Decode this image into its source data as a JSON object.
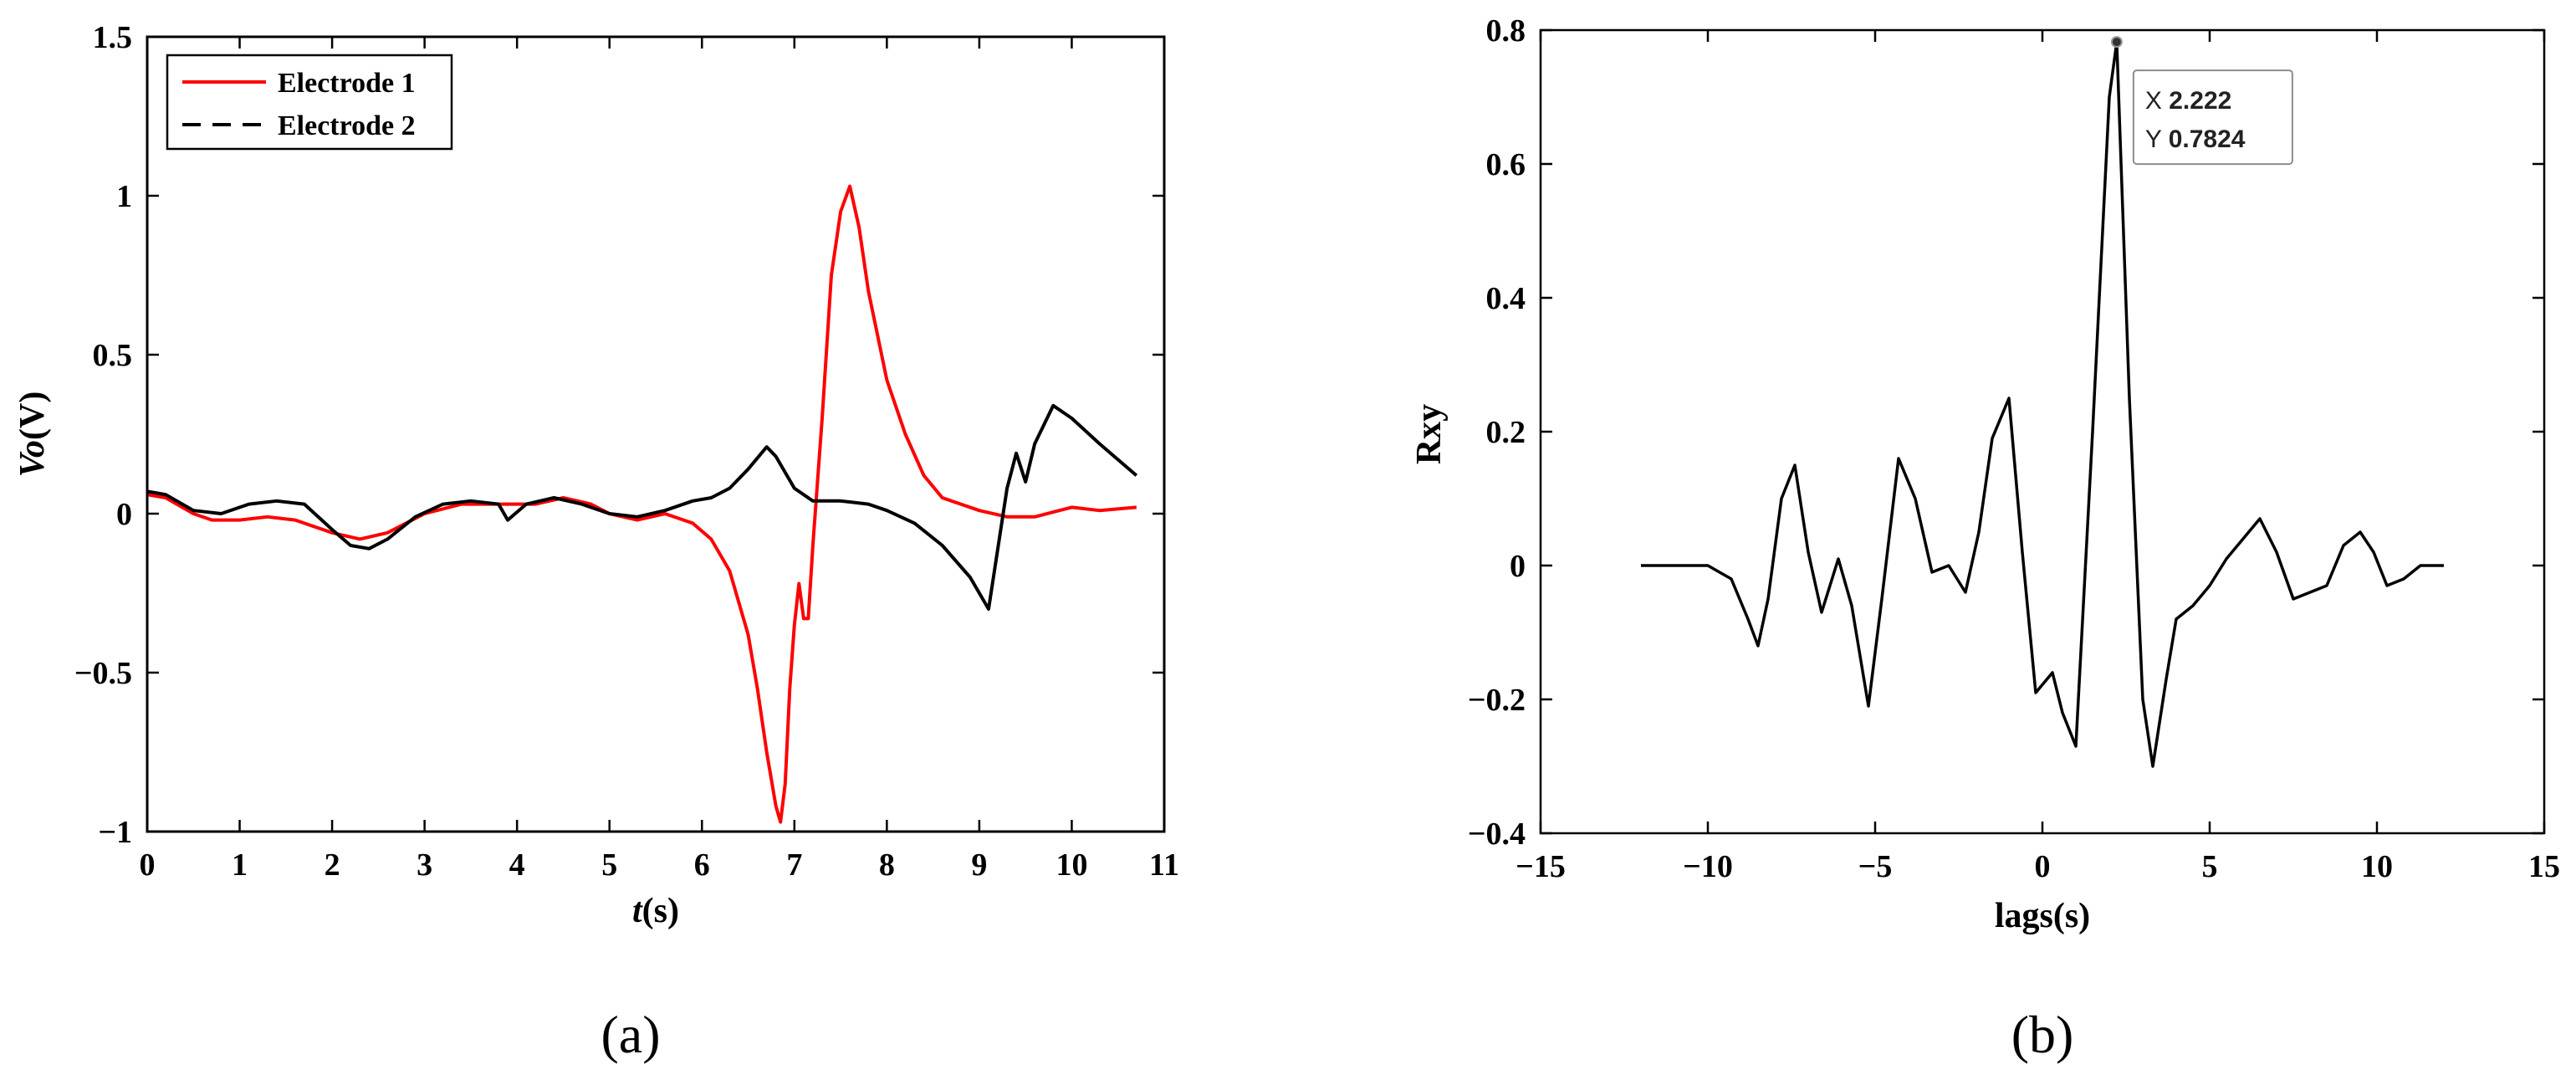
{
  "panel_labels": {
    "a": "(a)",
    "b": "(b)"
  },
  "chart_data": [
    {
      "type": "line",
      "panel": "a",
      "title": "",
      "xlabel": {
        "italic": "t",
        "rest": "(s)"
      },
      "ylabel": {
        "italic": "Vo",
        "rest": "(V)"
      },
      "xlim": [
        0,
        11
      ],
      "ylim": [
        -1,
        1.5
      ],
      "xticks": [
        0,
        1,
        2,
        3,
        4,
        5,
        6,
        7,
        8,
        9,
        10,
        11
      ],
      "yticks": [
        -1,
        -0.5,
        0,
        0.5,
        1,
        1.5
      ],
      "xtick_labels": [
        "0",
        "1",
        "2",
        "3",
        "4",
        "5",
        "6",
        "7",
        "8",
        "9",
        "10",
        "11"
      ],
      "ytick_labels": [
        "−1",
        "−0.5",
        "0",
        "0.5",
        "1",
        "1.5"
      ],
      "grid": false,
      "legend_position": "top-left",
      "series": [
        {
          "name": "Electrode 1",
          "color": "#ff0000",
          "dash": "solid",
          "x": [
            0,
            0.2,
            0.5,
            0.7,
            1.0,
            1.3,
            1.6,
            2.0,
            2.3,
            2.6,
            3.0,
            3.4,
            3.8,
            4.2,
            4.5,
            4.8,
            5.0,
            5.3,
            5.6,
            5.9,
            6.1,
            6.3,
            6.5,
            6.6,
            6.7,
            6.8,
            6.85,
            6.9,
            6.95,
            7.0,
            7.05,
            7.1,
            7.15,
            7.2,
            7.3,
            7.4,
            7.5,
            7.6,
            7.7,
            7.8,
            8.0,
            8.2,
            8.4,
            8.6,
            8.8,
            9.0,
            9.3,
            9.6,
            10.0,
            10.3,
            10.7
          ],
          "y": [
            0.06,
            0.05,
            0.0,
            -0.02,
            -0.02,
            -0.01,
            -0.02,
            -0.06,
            -0.08,
            -0.06,
            0.0,
            0.03,
            0.03,
            0.03,
            0.05,
            0.03,
            0.0,
            -0.02,
            0.0,
            -0.03,
            -0.08,
            -0.18,
            -0.38,
            -0.55,
            -0.75,
            -0.92,
            -0.97,
            -0.85,
            -0.55,
            -0.35,
            -0.22,
            -0.33,
            -0.33,
            -0.1,
            0.3,
            0.75,
            0.95,
            1.03,
            0.9,
            0.7,
            0.42,
            0.25,
            0.12,
            0.05,
            0.03,
            0.01,
            -0.01,
            -0.01,
            0.02,
            0.01,
            0.02
          ]
        },
        {
          "name": "Electrode 2",
          "color": "#000000",
          "dash": "dashed",
          "x": [
            0,
            0.2,
            0.5,
            0.8,
            1.1,
            1.4,
            1.7,
            2.0,
            2.2,
            2.4,
            2.6,
            2.9,
            3.2,
            3.5,
            3.8,
            3.9,
            4.1,
            4.4,
            4.7,
            5.0,
            5.3,
            5.6,
            5.9,
            6.1,
            6.3,
            6.5,
            6.7,
            6.8,
            7.0,
            7.2,
            7.5,
            7.8,
            8.0,
            8.3,
            8.6,
            8.9,
            9.1,
            9.3,
            9.4,
            9.5,
            9.6,
            9.8,
            10.0,
            10.3,
            10.7
          ],
          "y": [
            0.07,
            0.06,
            0.01,
            0.0,
            0.03,
            0.04,
            0.03,
            -0.05,
            -0.1,
            -0.11,
            -0.08,
            -0.01,
            0.03,
            0.04,
            0.03,
            -0.02,
            0.03,
            0.05,
            0.03,
            0.0,
            -0.01,
            0.01,
            0.04,
            0.05,
            0.08,
            0.14,
            0.21,
            0.18,
            0.08,
            0.04,
            0.04,
            0.03,
            0.01,
            -0.03,
            -0.1,
            -0.2,
            -0.3,
            0.08,
            0.19,
            0.1,
            0.22,
            0.34,
            0.3,
            0.22,
            0.12
          ]
        }
      ]
    },
    {
      "type": "line",
      "panel": "b",
      "title": "",
      "xlabel": "lags(s)",
      "ylabel": "Rxy",
      "xlim": [
        -15,
        15
      ],
      "ylim": [
        -0.4,
        0.8
      ],
      "xticks": [
        -15,
        -10,
        -5,
        0,
        5,
        10,
        15
      ],
      "yticks": [
        -0.4,
        -0.2,
        0,
        0.2,
        0.4,
        0.6,
        0.8
      ],
      "xtick_labels": [
        "−15",
        "−10",
        "−5",
        "0",
        "5",
        "10",
        "15"
      ],
      "ytick_labels": [
        "−0.4",
        "−0.2",
        "0",
        "0.2",
        "0.4",
        "0.6",
        "0.8"
      ],
      "grid": false,
      "series": [
        {
          "color": "#000000",
          "x": [
            -12,
            -11,
            -10,
            -9.3,
            -8.8,
            -8.5,
            -8.2,
            -7.8,
            -7.4,
            -7.0,
            -6.6,
            -6.1,
            -5.7,
            -5.2,
            -4.8,
            -4.3,
            -3.8,
            -3.3,
            -2.8,
            -2.3,
            -1.9,
            -1.5,
            -1.0,
            -0.6,
            -0.2,
            0.3,
            0.6,
            1.0,
            1.5,
            2.0,
            2.222,
            2.6,
            3.0,
            3.3,
            3.7,
            4.0,
            4.5,
            5.0,
            5.5,
            6.0,
            6.5,
            7.0,
            7.5,
            8.0,
            8.5,
            9.0,
            9.5,
            9.9,
            10.3,
            10.8,
            11.3,
            12.0
          ],
          "y": [
            0.0,
            0.0,
            0.0,
            -0.02,
            -0.08,
            -0.12,
            -0.05,
            0.1,
            0.15,
            0.02,
            -0.07,
            0.01,
            -0.06,
            -0.21,
            -0.05,
            0.16,
            0.1,
            -0.01,
            0.0,
            -0.04,
            0.05,
            0.19,
            0.25,
            0.02,
            -0.19,
            -0.16,
            -0.22,
            -0.27,
            0.2,
            0.7,
            0.7824,
            0.25,
            -0.2,
            -0.3,
            -0.17,
            -0.08,
            -0.06,
            -0.03,
            0.01,
            0.04,
            0.07,
            0.02,
            -0.05,
            -0.04,
            -0.03,
            0.03,
            0.05,
            0.02,
            -0.03,
            -0.02,
            0.0,
            0.0
          ]
        }
      ],
      "datatip": {
        "x_label": "X",
        "x_value": "2.222",
        "y_label": "Y",
        "y_value": "0.7824",
        "point": [
          2.222,
          0.7824
        ]
      }
    }
  ]
}
